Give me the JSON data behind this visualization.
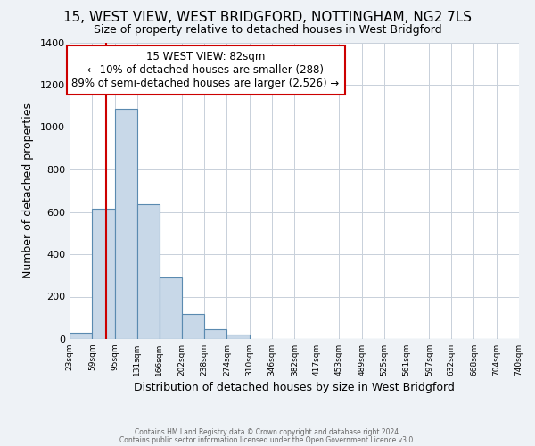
{
  "title": "15, WEST VIEW, WEST BRIDGFORD, NOTTINGHAM, NG2 7LS",
  "subtitle": "Size of property relative to detached houses in West Bridgford",
  "xlabel": "Distribution of detached houses by size in West Bridgford",
  "ylabel": "Number of detached properties",
  "bin_edges": [
    23,
    59,
    95,
    131,
    166,
    202,
    238,
    274,
    310,
    346,
    382,
    417,
    453,
    489,
    525,
    561,
    597,
    632,
    668,
    704,
    740
  ],
  "bar_heights": [
    30,
    615,
    1085,
    635,
    290,
    120,
    48,
    20,
    0,
    0,
    0,
    0,
    0,
    0,
    0,
    0,
    0,
    0,
    0,
    0
  ],
  "bar_color": "#c8d8e8",
  "bar_edge_color": "#5a8ab0",
  "property_size": 82,
  "property_label": "15 WEST VIEW: 82sqm",
  "annotation_line1": "← 10% of detached houses are smaller (288)",
  "annotation_line2": "89% of semi-detached houses are larger (2,526) →",
  "annotation_box_color": "#ffffff",
  "annotation_box_edge_color": "#cc0000",
  "vline_color": "#cc0000",
  "ylim": [
    0,
    1400
  ],
  "yticks": [
    0,
    200,
    400,
    600,
    800,
    1000,
    1200,
    1400
  ],
  "tick_labels": [
    "23sqm",
    "59sqm",
    "95sqm",
    "131sqm",
    "166sqm",
    "202sqm",
    "238sqm",
    "274sqm",
    "310sqm",
    "346sqm",
    "382sqm",
    "417sqm",
    "453sqm",
    "489sqm",
    "525sqm",
    "561sqm",
    "597sqm",
    "632sqm",
    "668sqm",
    "704sqm",
    "740sqm"
  ],
  "footer1": "Contains HM Land Registry data © Crown copyright and database right 2024.",
  "footer2": "Contains public sector information licensed under the Open Government Licence v3.0.",
  "background_color": "#eef2f6",
  "plot_background": "#ffffff",
  "title_fontsize": 11,
  "subtitle_fontsize": 9,
  "grid_color": "#c8d0da"
}
